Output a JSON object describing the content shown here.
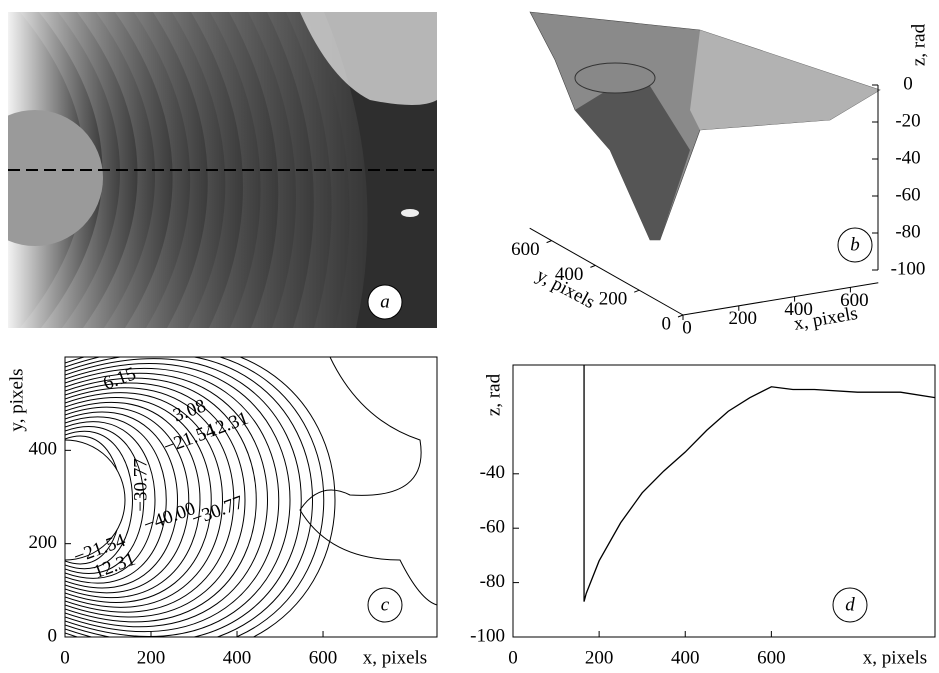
{
  "chart_data": [
    {
      "type": "image",
      "panel_label": "a"
    },
    {
      "type": "surface",
      "panel_label": "b",
      "x_label": "x, pixels",
      "y_label": "y, pixels",
      "z_label": "z, rad",
      "xlim": [
        0,
        700
      ],
      "ylim": [
        0,
        700
      ],
      "zlim": [
        -100,
        0
      ],
      "xticks": [
        0,
        200,
        400,
        600
      ],
      "yticks": [
        0,
        200,
        400,
        600
      ],
      "zticks": [
        0,
        -20,
        -40,
        -60,
        -80,
        -100
      ]
    },
    {
      "type": "contour",
      "panel_label": "c",
      "x_label": "x, pixels",
      "y_label": "y, pixels",
      "xlim": [
        0,
        865
      ],
      "ylim": [
        0,
        600
      ],
      "xticks": [
        0,
        200,
        400,
        600
      ],
      "yticks": [
        0,
        200,
        400
      ],
      "contour_labels": [
        "6.15",
        "3.08",
        "12.31",
        "−21.54",
        "−40.00",
        "−30.77",
        "−21.54",
        "12.31",
        "−30.77"
      ]
    },
    {
      "type": "line",
      "panel_label": "d",
      "x_label": "x, pixels",
      "y_label": "z, rad",
      "xlim": [
        0,
        980
      ],
      "ylim": [
        -100,
        0
      ],
      "xticks": [
        0,
        200,
        400,
        600
      ],
      "yticks": [
        -100,
        -80,
        -60,
        -40
      ],
      "x": [
        165,
        165,
        170,
        200,
        250,
        300,
        350,
        400,
        450,
        500,
        550,
        600,
        650,
        700,
        800,
        900,
        980
      ],
      "values": [
        0,
        -87,
        -84,
        -72,
        -58,
        -47,
        -39,
        -32,
        -24,
        -17,
        -12,
        -8,
        -9,
        -9,
        -10,
        -10,
        -12
      ],
      "color": "#000000"
    }
  ]
}
